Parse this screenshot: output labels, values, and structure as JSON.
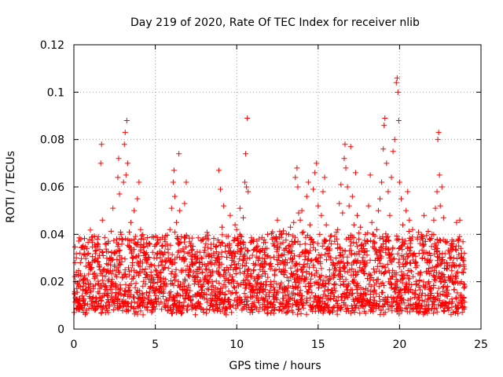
{
  "chart_data": {
    "type": "scatter",
    "title": "Day 219 of 2020, Rate Of TEC Index for receiver nlib",
    "xlabel": "GPS time / hours",
    "ylabel": "ROTI / TECUs",
    "xlim": [
      0,
      25
    ],
    "ylim": [
      0,
      0.12
    ],
    "xticks": [
      0,
      5,
      10,
      15,
      20,
      25
    ],
    "xtick_labels": [
      "0",
      "5",
      "10",
      "15",
      "20",
      "25"
    ],
    "yticks": [
      0,
      0.02,
      0.04,
      0.06,
      0.08,
      0.1,
      0.12
    ],
    "ytick_labels": [
      "0",
      "0.02",
      "0.04",
      "0.06",
      "0.08",
      "0.1",
      "0.12"
    ],
    "grid": true,
    "marker": "+",
    "color": "#ff0000",
    "series": [
      {
        "name": "ROTI",
        "points": [
          [
            0.05,
            0.015
          ],
          [
            0.1,
            0.02
          ],
          [
            0.15,
            0.024
          ],
          [
            0.2,
            0.012
          ],
          [
            0.3,
            0.018
          ],
          [
            0.4,
            0.028
          ],
          [
            0.5,
            0.014
          ],
          [
            0.6,
            0.021
          ],
          [
            0.7,
            0.016
          ],
          [
            0.8,
            0.034
          ],
          [
            0.9,
            0.019
          ],
          [
            1.0,
            0.013
          ],
          [
            1.1,
            0.026
          ],
          [
            1.2,
            0.017
          ],
          [
            1.3,
            0.022
          ],
          [
            1.4,
            0.011
          ],
          [
            1.5,
            0.039
          ],
          [
            1.6,
            0.025
          ],
          [
            1.65,
            0.07
          ],
          [
            1.7,
            0.078
          ],
          [
            1.75,
            0.046
          ],
          [
            1.8,
            0.031
          ],
          [
            1.9,
            0.018
          ],
          [
            2.0,
            0.024
          ],
          [
            2.1,
            0.015
          ],
          [
            2.2,
            0.03
          ],
          [
            2.3,
            0.02
          ],
          [
            2.4,
            0.051
          ],
          [
            2.5,
            0.027
          ],
          [
            2.6,
            0.018
          ],
          [
            2.7,
            0.064
          ],
          [
            2.75,
            0.072
          ],
          [
            2.8,
            0.057
          ],
          [
            2.9,
            0.04
          ],
          [
            3.0,
            0.022
          ],
          [
            3.05,
            0.062
          ],
          [
            3.1,
            0.078
          ],
          [
            3.15,
            0.083
          ],
          [
            3.2,
            0.065
          ],
          [
            3.25,
            0.088
          ],
          [
            3.3,
            0.07
          ],
          [
            3.4,
            0.035
          ],
          [
            3.5,
            0.045
          ],
          [
            3.6,
            0.028
          ],
          [
            3.7,
            0.05
          ],
          [
            3.8,
            0.036
          ],
          [
            3.9,
            0.055
          ],
          [
            4.0,
            0.062
          ],
          [
            4.1,
            0.042
          ],
          [
            4.2,
            0.025
          ],
          [
            4.3,
            0.031
          ],
          [
            4.4,
            0.019
          ],
          [
            4.5,
            0.023
          ],
          [
            4.6,
            0.014
          ],
          [
            4.7,
            0.018
          ],
          [
            4.8,
            0.011
          ],
          [
            4.9,
            0.021
          ],
          [
            5.0,
            0.016
          ],
          [
            5.1,
            0.03
          ],
          [
            5.2,
            0.013
          ],
          [
            5.3,
            0.024
          ],
          [
            5.4,
            0.035
          ],
          [
            5.5,
            0.019
          ],
          [
            5.6,
            0.026
          ],
          [
            5.7,
            0.012
          ],
          [
            5.8,
            0.03
          ],
          [
            5.9,
            0.042
          ],
          [
            6.0,
            0.051
          ],
          [
            6.1,
            0.062
          ],
          [
            6.15,
            0.067
          ],
          [
            6.2,
            0.056
          ],
          [
            6.3,
            0.045
          ],
          [
            6.4,
            0.038
          ],
          [
            6.45,
            0.074
          ],
          [
            6.5,
            0.05
          ],
          [
            6.6,
            0.039
          ],
          [
            6.7,
            0.03
          ],
          [
            6.8,
            0.053
          ],
          [
            6.9,
            0.062
          ],
          [
            7.0,
            0.032
          ],
          [
            7.1,
            0.024
          ],
          [
            7.2,
            0.035
          ],
          [
            7.3,
            0.027
          ],
          [
            7.4,
            0.019
          ],
          [
            7.5,
            0.022
          ],
          [
            7.6,
            0.015
          ],
          [
            7.7,
            0.028
          ],
          [
            7.8,
            0.018
          ],
          [
            7.9,
            0.024
          ],
          [
            8.0,
            0.013
          ],
          [
            8.1,
            0.021
          ],
          [
            8.2,
            0.017
          ],
          [
            8.3,
            0.025
          ],
          [
            8.4,
            0.012
          ],
          [
            8.5,
            0.02
          ],
          [
            8.6,
            0.016
          ],
          [
            8.7,
            0.029
          ],
          [
            8.8,
            0.03
          ],
          [
            8.9,
            0.067
          ],
          [
            9.0,
            0.059
          ],
          [
            9.1,
            0.043
          ],
          [
            9.2,
            0.052
          ],
          [
            9.3,
            0.035
          ],
          [
            9.4,
            0.026
          ],
          [
            9.5,
            0.033
          ],
          [
            9.6,
            0.048
          ],
          [
            9.7,
            0.03
          ],
          [
            9.8,
            0.025
          ],
          [
            9.9,
            0.044
          ],
          [
            10.0,
            0.042
          ],
          [
            10.1,
            0.036
          ],
          [
            10.2,
            0.051
          ],
          [
            10.3,
            0.039
          ],
          [
            10.4,
            0.047
          ],
          [
            10.5,
            0.062
          ],
          [
            10.55,
            0.074
          ],
          [
            10.6,
            0.06
          ],
          [
            10.65,
            0.089
          ],
          [
            10.7,
            0.058
          ],
          [
            10.8,
            0.03
          ],
          [
            10.9,
            0.022
          ],
          [
            11.0,
            0.018
          ],
          [
            11.1,
            0.027
          ],
          [
            11.2,
            0.014
          ],
          [
            11.3,
            0.022
          ],
          [
            11.4,
            0.03
          ],
          [
            11.5,
            0.019
          ],
          [
            11.6,
            0.026
          ],
          [
            11.7,
            0.012
          ],
          [
            11.8,
            0.02
          ],
          [
            11.9,
            0.04
          ],
          [
            12.0,
            0.027
          ],
          [
            12.1,
            0.018
          ],
          [
            12.2,
            0.041
          ],
          [
            12.3,
            0.035
          ],
          [
            12.4,
            0.025
          ],
          [
            12.5,
            0.046
          ],
          [
            12.6,
            0.029
          ],
          [
            12.7,
            0.036
          ],
          [
            12.8,
            0.017
          ],
          [
            12.9,
            0.023
          ],
          [
            13.0,
            0.034
          ],
          [
            13.1,
            0.028
          ],
          [
            13.2,
            0.04
          ],
          [
            13.3,
            0.043
          ],
          [
            13.4,
            0.033
          ],
          [
            13.5,
            0.045
          ],
          [
            13.6,
            0.064
          ],
          [
            13.7,
            0.068
          ],
          [
            13.75,
            0.06
          ],
          [
            13.8,
            0.049
          ],
          [
            13.9,
            0.046
          ],
          [
            14.0,
            0.05
          ],
          [
            14.1,
            0.041
          ],
          [
            14.2,
            0.036
          ],
          [
            14.3,
            0.056
          ],
          [
            14.4,
            0.062
          ],
          [
            14.5,
            0.044
          ],
          [
            14.6,
            0.038
          ],
          [
            14.7,
            0.059
          ],
          [
            14.8,
            0.066
          ],
          [
            14.9,
            0.07
          ],
          [
            15.0,
            0.052
          ],
          [
            15.1,
            0.04
          ],
          [
            15.2,
            0.048
          ],
          [
            15.3,
            0.058
          ],
          [
            15.4,
            0.064
          ],
          [
            15.5,
            0.044
          ],
          [
            15.6,
            0.032
          ],
          [
            15.7,
            0.025
          ],
          [
            15.8,
            0.036
          ],
          [
            15.9,
            0.028
          ],
          [
            16.0,
            0.019
          ],
          [
            16.1,
            0.03
          ],
          [
            16.2,
            0.042
          ],
          [
            16.3,
            0.053
          ],
          [
            16.4,
            0.061
          ],
          [
            16.5,
            0.049
          ],
          [
            16.6,
            0.072
          ],
          [
            16.65,
            0.078
          ],
          [
            16.7,
            0.068
          ],
          [
            16.8,
            0.06
          ],
          [
            16.9,
            0.052
          ],
          [
            17.0,
            0.077
          ],
          [
            17.1,
            0.056
          ],
          [
            17.2,
            0.044
          ],
          [
            17.3,
            0.066
          ],
          [
            17.4,
            0.048
          ],
          [
            17.5,
            0.038
          ],
          [
            17.6,
            0.043
          ],
          [
            17.7,
            0.034
          ],
          [
            17.8,
            0.028
          ],
          [
            17.9,
            0.04
          ],
          [
            18.0,
            0.033
          ],
          [
            18.1,
            0.052
          ],
          [
            18.2,
            0.065
          ],
          [
            18.3,
            0.045
          ],
          [
            18.4,
            0.037
          ],
          [
            18.5,
            0.029
          ],
          [
            18.6,
            0.042
          ],
          [
            18.7,
            0.05
          ],
          [
            18.8,
            0.055
          ],
          [
            18.9,
            0.062
          ],
          [
            19.0,
            0.076
          ],
          [
            19.05,
            0.086
          ],
          [
            19.1,
            0.089
          ],
          [
            19.2,
            0.07
          ],
          [
            19.3,
            0.058
          ],
          [
            19.4,
            0.048
          ],
          [
            19.5,
            0.064
          ],
          [
            19.6,
            0.075
          ],
          [
            19.7,
            0.08
          ],
          [
            19.8,
            0.104
          ],
          [
            19.85,
            0.106
          ],
          [
            19.9,
            0.1
          ],
          [
            19.95,
            0.088
          ],
          [
            20.0,
            0.062
          ],
          [
            20.1,
            0.055
          ],
          [
            20.2,
            0.044
          ],
          [
            20.3,
            0.036
          ],
          [
            20.4,
            0.05
          ],
          [
            20.5,
            0.058
          ],
          [
            20.6,
            0.046
          ],
          [
            20.7,
            0.038
          ],
          [
            20.8,
            0.042
          ],
          [
            20.9,
            0.032
          ],
          [
            21.0,
            0.026
          ],
          [
            21.1,
            0.038
          ],
          [
            21.2,
            0.032
          ],
          [
            21.3,
            0.024
          ],
          [
            21.4,
            0.03
          ],
          [
            21.5,
            0.048
          ],
          [
            21.6,
            0.037
          ],
          [
            21.7,
            0.028
          ],
          [
            21.8,
            0.02
          ],
          [
            21.9,
            0.031
          ],
          [
            22.0,
            0.04
          ],
          [
            22.1,
            0.046
          ],
          [
            22.2,
            0.051
          ],
          [
            22.3,
            0.058
          ],
          [
            22.35,
            0.08
          ],
          [
            22.4,
            0.083
          ],
          [
            22.45,
            0.065
          ],
          [
            22.5,
            0.052
          ],
          [
            22.6,
            0.06
          ],
          [
            22.7,
            0.047
          ],
          [
            22.8,
            0.037
          ],
          [
            22.9,
            0.028
          ],
          [
            23.0,
            0.022
          ],
          [
            23.1,
            0.03
          ],
          [
            23.2,
            0.036
          ],
          [
            23.3,
            0.027
          ],
          [
            23.4,
            0.02
          ],
          [
            23.5,
            0.045
          ],
          [
            23.6,
            0.038
          ],
          [
            23.7,
            0.046
          ],
          [
            23.8,
            0.03
          ],
          [
            23.9,
            0.024
          ],
          [
            24.0,
            0.018
          ]
        ]
      }
    ]
  }
}
